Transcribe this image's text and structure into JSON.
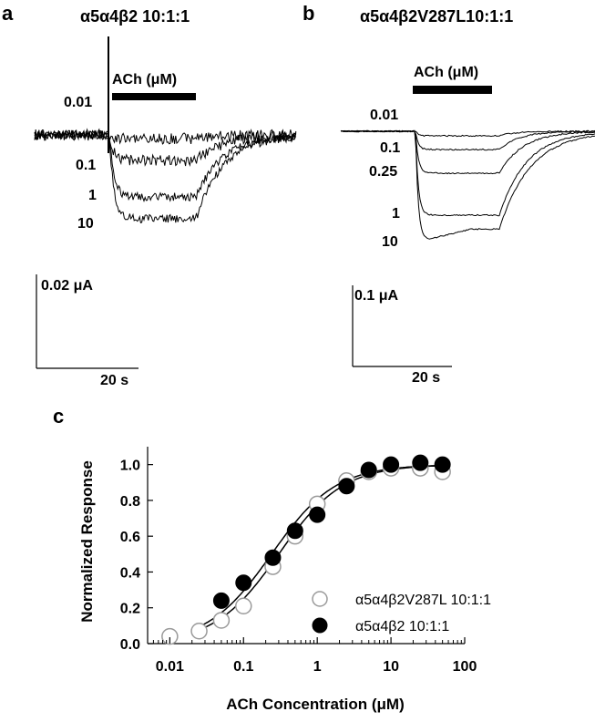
{
  "panels": {
    "a": {
      "letter": "a",
      "title": "α5α4β2 10:1:1",
      "ach_label": "ACh (μM)",
      "concentrations": [
        "0.01",
        "0.1",
        "1",
        "10"
      ],
      "scale_current": "0.02 μA",
      "scale_time": "20 s"
    },
    "b": {
      "letter": "b",
      "title": "α5α4β2V287L10:1:1",
      "ach_label": "ACh (μM)",
      "concentrations": [
        "0.01",
        "0.1",
        "0.25",
        "1",
        "10"
      ],
      "scale_current": "0.1 μA",
      "scale_time": "20 s"
    },
    "c": {
      "letter": "c"
    }
  },
  "chart_data": {
    "type": "scatter",
    "title": "",
    "xlabel": "ACh Concentration (μM)",
    "ylabel": "Normalized Response",
    "xscale": "log",
    "xlim": [
      0.005,
      100
    ],
    "ylim": [
      0.0,
      1.1
    ],
    "xticks": [
      0.01,
      0.1,
      1,
      10,
      100
    ],
    "xtick_labels": [
      "0.01",
      "0.1",
      "1",
      "10",
      "100"
    ],
    "yticks": [
      0.0,
      0.2,
      0.4,
      0.6,
      0.8,
      1.0
    ],
    "ytick_labels": [
      "0.0",
      "0.2",
      "0.4",
      "0.6",
      "0.8",
      "1.0"
    ],
    "legend_position": "bottom-right",
    "series": [
      {
        "name": "α5α4β2V287L 10:1:1",
        "marker": "open-circle",
        "color": "#9a9a9a",
        "x": [
          0.01,
          0.025,
          0.05,
          0.1,
          0.25,
          0.5,
          1,
          2.5,
          5,
          10,
          25,
          50
        ],
        "y": [
          0.04,
          0.07,
          0.13,
          0.21,
          0.43,
          0.6,
          0.78,
          0.91,
          0.96,
          0.98,
          0.98,
          0.96
        ]
      },
      {
        "name": "α5α4β2 10:1:1",
        "marker": "filled-circle",
        "color": "#000000",
        "x": [
          0.05,
          0.1,
          0.25,
          0.5,
          1,
          2.5,
          5,
          10,
          25,
          50
        ],
        "y": [
          0.24,
          0.34,
          0.48,
          0.63,
          0.72,
          0.88,
          0.97,
          1.0,
          1.01,
          1.0
        ]
      }
    ],
    "fits": [
      {
        "name": "fit-α5α4β2V287L",
        "ec50": 0.3,
        "hill": 1.0,
        "top": 1.0
      },
      {
        "name": "fit-α5α4β2",
        "ec50": 0.24,
        "hill": 1.0,
        "top": 1.0
      }
    ]
  }
}
